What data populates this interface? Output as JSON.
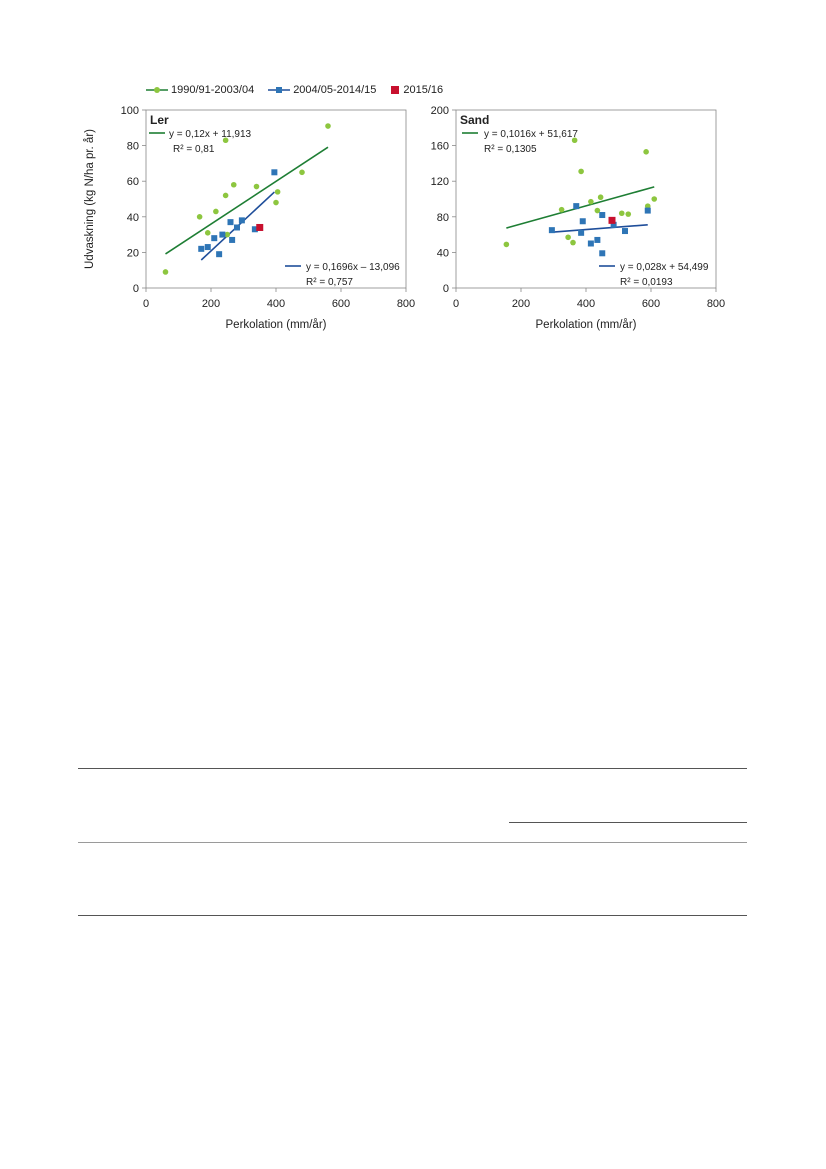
{
  "legend": [
    {
      "label": "1990/91-2003/04",
      "color": "#8dc63f",
      "marker": "circle",
      "line_color": "#1e7e34"
    },
    {
      "label": "2004/05-2014/15",
      "color": "#2e75b6",
      "marker": "square",
      "line_color": "#1f4e9a"
    },
    {
      "label": "2015/16",
      "color": "#c8102e",
      "marker": "square"
    }
  ],
  "chart_data": [
    {
      "type": "scatter",
      "panel_label": "Ler",
      "xlabel": "Perkolation (mm/år)",
      "ylabel": "Udvaskning (kg N/ha pr. år)",
      "xlim": [
        0,
        800
      ],
      "ylim": [
        0,
        100
      ],
      "xticks": [
        0,
        200,
        400,
        600,
        800
      ],
      "yticks": [
        0,
        20,
        40,
        60,
        80,
        100
      ],
      "grid": false,
      "series": [
        {
          "name": "1990/91-2003/04",
          "marker": "circle",
          "color": "#8dc63f",
          "points": [
            [
              60,
              9
            ],
            [
              165,
              40
            ],
            [
              190,
              31
            ],
            [
              215,
              43
            ],
            [
              245,
              83
            ],
            [
              245,
              52
            ],
            [
              250,
              30
            ],
            [
              270,
              58
            ],
            [
              340,
              57
            ],
            [
              400,
              48
            ],
            [
              405,
              54
            ],
            [
              480,
              65
            ],
            [
              560,
              91
            ]
          ],
          "trendline": {
            "equation": "y = 0,12x + 11,913",
            "r2": "R² = 0,81",
            "x_range": [
              60,
              560
            ],
            "color": "#1e7e34",
            "slope": 0.12,
            "intercept": 11.913
          }
        },
        {
          "name": "2004/05-2014/15",
          "marker": "square",
          "color": "#2e75b6",
          "points": [
            [
              170,
              22
            ],
            [
              190,
              23
            ],
            [
              210,
              28
            ],
            [
              225,
              19
            ],
            [
              235,
              30
            ],
            [
              260,
              37
            ],
            [
              265,
              27
            ],
            [
              280,
              34
            ],
            [
              295,
              38
            ],
            [
              335,
              33
            ],
            [
              395,
              65
            ]
          ],
          "trendline": {
            "equation": "y = 0,1696x – 13,096",
            "r2": "R² = 0,757",
            "x_range": [
              170,
              395
            ],
            "color": "#1f4e9a",
            "slope": 0.1696,
            "intercept": -13.096
          }
        },
        {
          "name": "2015/16",
          "marker": "square",
          "color": "#c8102e",
          "points": [
            [
              350,
              34
            ]
          ]
        }
      ],
      "annotations": [
        {
          "text": "y = 0,12x + 11,913",
          "series": "1990/91-2003/04"
        },
        {
          "text": "R² = 0,81",
          "series": "1990/91-2003/04"
        },
        {
          "text": "y = 0,1696x – 13,096",
          "series": "2004/05-2014/15"
        },
        {
          "text": "R² = 0,757",
          "series": "2004/05-2014/15"
        }
      ]
    },
    {
      "type": "scatter",
      "panel_label": "Sand",
      "xlabel": "Perkolation (mm/år)",
      "ylabel": "",
      "xlim": [
        0,
        800
      ],
      "ylim": [
        0,
        200
      ],
      "xticks": [
        0,
        200,
        400,
        600,
        800
      ],
      "yticks": [
        0,
        40,
        80,
        120,
        160,
        200
      ],
      "grid": false,
      "series": [
        {
          "name": "1990/91-2003/04",
          "marker": "circle",
          "color": "#8dc63f",
          "points": [
            [
              155,
              49
            ],
            [
              325,
              88
            ],
            [
              345,
              57
            ],
            [
              360,
              51
            ],
            [
              365,
              166
            ],
            [
              385,
              131
            ],
            [
              415,
              97
            ],
            [
              435,
              87
            ],
            [
              445,
              102
            ],
            [
              510,
              84
            ],
            [
              530,
              83
            ],
            [
              585,
              153
            ],
            [
              590,
              92
            ],
            [
              610,
              100
            ]
          ],
          "trendline": {
            "equation": "y = 0,1016x + 51,617",
            "r2": "R² = 0,1305",
            "x_range": [
              155,
              610
            ],
            "color": "#1e7e34",
            "slope": 0.1016,
            "intercept": 51.617
          }
        },
        {
          "name": "2004/05-2014/15",
          "marker": "square",
          "color": "#2e75b6",
          "points": [
            [
              295,
              65
            ],
            [
              370,
              92
            ],
            [
              385,
              62
            ],
            [
              390,
              75
            ],
            [
              415,
              50
            ],
            [
              435,
              54
            ],
            [
              450,
              82
            ],
            [
              450,
              39
            ],
            [
              485,
              71
            ],
            [
              520,
              64
            ],
            [
              590,
              87
            ]
          ],
          "trendline": {
            "equation": "y = 0,028x + 54,499",
            "r2": "R² = 0,0193",
            "x_range": [
              295,
              590
            ],
            "color": "#1f4e9a",
            "slope": 0.028,
            "intercept": 54.499
          }
        },
        {
          "name": "2015/16",
          "marker": "square",
          "color": "#c8102e",
          "points": [
            [
              480,
              76
            ]
          ]
        }
      ],
      "annotations": [
        {
          "text": "y = 0,1016x + 51,617",
          "series": "1990/91-2003/04"
        },
        {
          "text": "R² = 0,1305",
          "series": "1990/91-2003/04"
        },
        {
          "text": "y = 0,028x + 54,499",
          "series": "2004/05-2014/15"
        },
        {
          "text": "R² = 0,0193",
          "series": "2004/05-2014/15"
        }
      ]
    }
  ]
}
